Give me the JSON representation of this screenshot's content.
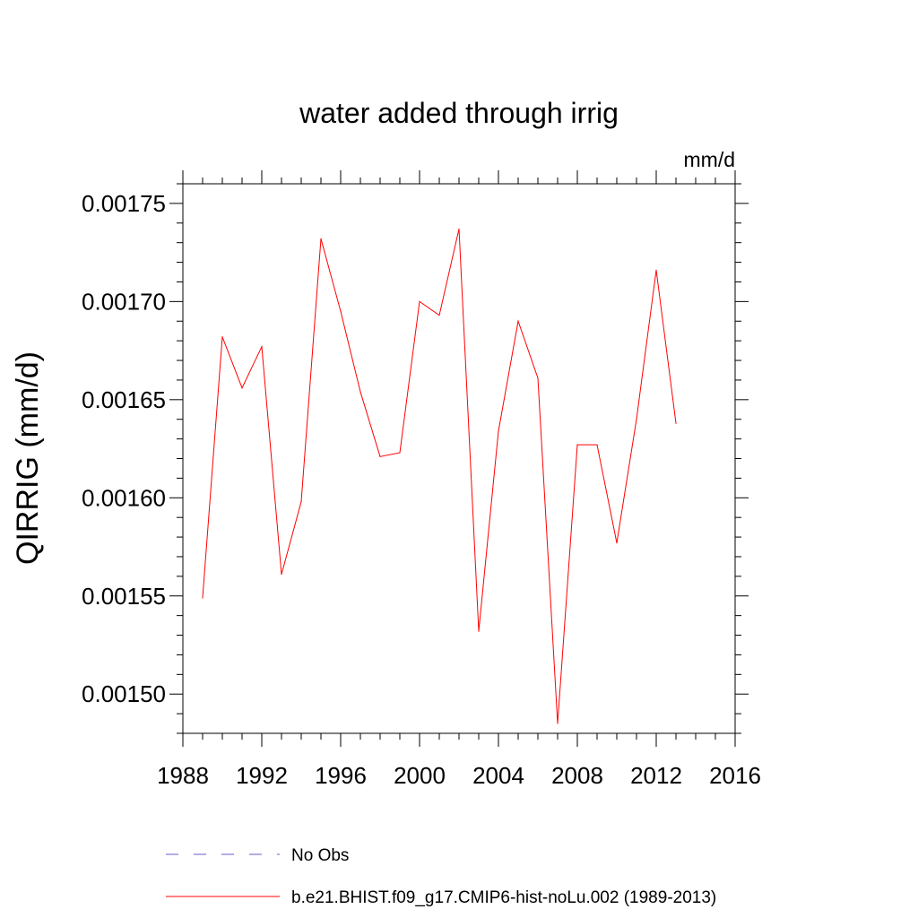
{
  "chart_data": {
    "type": "line",
    "title": "water added through irrig",
    "units": "mm/d",
    "xlabel": "",
    "ylabel": "QIRRIG  (mm/d)",
    "xlim": [
      1988,
      2016
    ],
    "ylim": [
      0.00148,
      0.00176
    ],
    "x_ticks": [
      "1988",
      "1992",
      "1996",
      "2000",
      "2004",
      "2008",
      "2012",
      "2016"
    ],
    "y_ticks": [
      "0.00150",
      "0.00155",
      "0.00160",
      "0.00165",
      "0.00170",
      "0.00175"
    ],
    "grid": false,
    "legend_position": "bottom",
    "x": [
      1989,
      1990,
      1991,
      1992,
      1993,
      1994,
      1995,
      1996,
      1997,
      1998,
      1999,
      2000,
      2001,
      2002,
      2003,
      2004,
      2005,
      2006,
      2007,
      2008,
      2009,
      2010,
      2011,
      2012,
      2013
    ],
    "series": [
      {
        "name": "b.e21.BHIST.f09_g17.CMIP6-hist-noLu.002 (1989-2013)",
        "color": "#ff0000",
        "dash": "solid",
        "values": [
          0.001549,
          0.001682,
          0.001656,
          0.001677,
          0.001561,
          0.001598,
          0.001732,
          0.001695,
          0.001654,
          0.001621,
          0.001623,
          0.0017,
          0.001693,
          0.001737,
          0.001532,
          0.001634,
          0.00169,
          0.001661,
          0.001485,
          0.001627,
          0.001627,
          0.001577,
          0.00164,
          0.001716,
          0.001638
        ]
      }
    ],
    "legend": [
      {
        "label": "No Obs",
        "color": "#6a5acd",
        "dash": "dashed"
      },
      {
        "label": "b.e21.BHIST.f09_g17.CMIP6-hist-noLu.002 (1989-2013)",
        "color": "#ff0000",
        "dash": "solid"
      }
    ]
  }
}
